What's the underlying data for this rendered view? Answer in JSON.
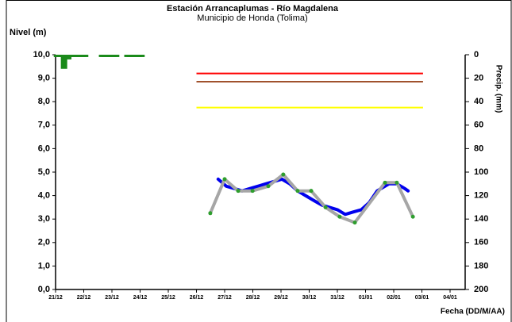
{
  "chart_data": {
    "type": "line",
    "title": "Estación Arrancaplumas - Río Magdalena",
    "subtitle": "Municipio de Honda (Tolima)",
    "ylabel": "Nivel (m)",
    "xlabel": "Fecha (DD/M/AA)",
    "y2label": "Precip. (mm)",
    "xlim": [
      0,
      14
    ],
    "xticks": [
      {
        "value": 0,
        "label": "21/12"
      },
      {
        "value": 1,
        "label": "22/12"
      },
      {
        "value": 2,
        "label": "23/12"
      },
      {
        "value": 3,
        "label": "24/12"
      },
      {
        "value": 4,
        "label": "25/12"
      },
      {
        "value": 5,
        "label": "26/12"
      },
      {
        "value": 6,
        "label": "27/12"
      },
      {
        "value": 7,
        "label": "28/12"
      },
      {
        "value": 8,
        "label": "29/12"
      },
      {
        "value": 9,
        "label": "30/12"
      },
      {
        "value": 10,
        "label": "31/12"
      },
      {
        "value": 11,
        "label": "01/01"
      },
      {
        "value": 12,
        "label": "02/01"
      },
      {
        "value": 13,
        "label": "03/01"
      },
      {
        "value": 14,
        "label": "04/01"
      }
    ],
    "ylim": [
      0,
      10
    ],
    "yticks": [
      {
        "value": 0,
        "label": "0,0"
      },
      {
        "value": 1,
        "label": "1,0"
      },
      {
        "value": 2,
        "label": "2,0"
      },
      {
        "value": 3,
        "label": "3,0"
      },
      {
        "value": 4,
        "label": "4,0"
      },
      {
        "value": 5,
        "label": "5,0"
      },
      {
        "value": 6,
        "label": "6,0"
      },
      {
        "value": 7,
        "label": "7,0"
      },
      {
        "value": 8,
        "label": "8,0"
      },
      {
        "value": 9,
        "label": "9,0"
      },
      {
        "value": 10,
        "label": "10,0"
      }
    ],
    "y2lim": [
      0,
      200
    ],
    "y2_inverted": true,
    "y2ticks": [
      0,
      20,
      40,
      60,
      80,
      100,
      120,
      140,
      160,
      180,
      200
    ],
    "thresholds": [
      {
        "value": 9.2,
        "color": "#ff0000",
        "xrange": [
          5.0,
          13.04
        ]
      },
      {
        "value": 8.85,
        "color": "#a0522d",
        "xrange": [
          5.0,
          13.04
        ]
      },
      {
        "value": 7.75,
        "color": "#ffff00",
        "xrange": [
          5.0,
          13.04
        ]
      }
    ],
    "series": [
      {
        "kind": "bars",
        "axis": "y2",
        "color": "#1a8a1a",
        "x": [
          0.05,
          0.15,
          0.25,
          0.3,
          0.35,
          0.45,
          0.55,
          0.65,
          0.75,
          0.85,
          0.95,
          1.05,
          1.65,
          1.75,
          1.85,
          1.95,
          2.05,
          2.15,
          2.55,
          2.65,
          2.75,
          2.85,
          2.95,
          3.05
        ],
        "values": [
          2,
          2,
          2,
          12,
          2,
          4,
          2,
          2,
          2,
          2,
          2,
          2,
          2,
          2,
          2,
          2,
          2,
          2,
          2,
          2,
          2,
          2,
          2,
          2
        ]
      },
      {
        "kind": "line",
        "color": "#0000ee",
        "width": 4,
        "x": [
          5.77,
          6.06,
          6.34,
          6.62,
          6.9,
          7.18,
          7.46,
          7.75,
          8.03,
          8.31,
          8.59,
          8.87,
          9.15,
          9.44,
          9.72,
          10.0,
          10.28,
          10.56,
          10.85,
          11.13,
          11.41,
          11.83,
          12.11,
          12.39,
          12.51
        ],
        "values": [
          4.7,
          4.4,
          4.3,
          4.2,
          4.3,
          4.4,
          4.5,
          4.6,
          4.7,
          4.5,
          4.2,
          4.0,
          3.8,
          3.6,
          3.5,
          3.4,
          3.2,
          3.3,
          3.4,
          3.7,
          4.2,
          4.5,
          4.5,
          4.3,
          4.2
        ]
      },
      {
        "kind": "line",
        "color": "#a6a6a6",
        "width": 4,
        "marker_color": "#2e9e2e",
        "x": [
          5.49,
          6.0,
          6.48,
          6.99,
          7.55,
          8.08,
          8.59,
          9.07,
          9.58,
          10.08,
          10.62,
          11.69,
          12.11,
          12.68
        ],
        "values": [
          3.25,
          4.7,
          4.2,
          4.2,
          4.4,
          4.9,
          4.2,
          4.2,
          3.5,
          3.1,
          2.85,
          4.55,
          4.55,
          3.1
        ]
      }
    ]
  }
}
